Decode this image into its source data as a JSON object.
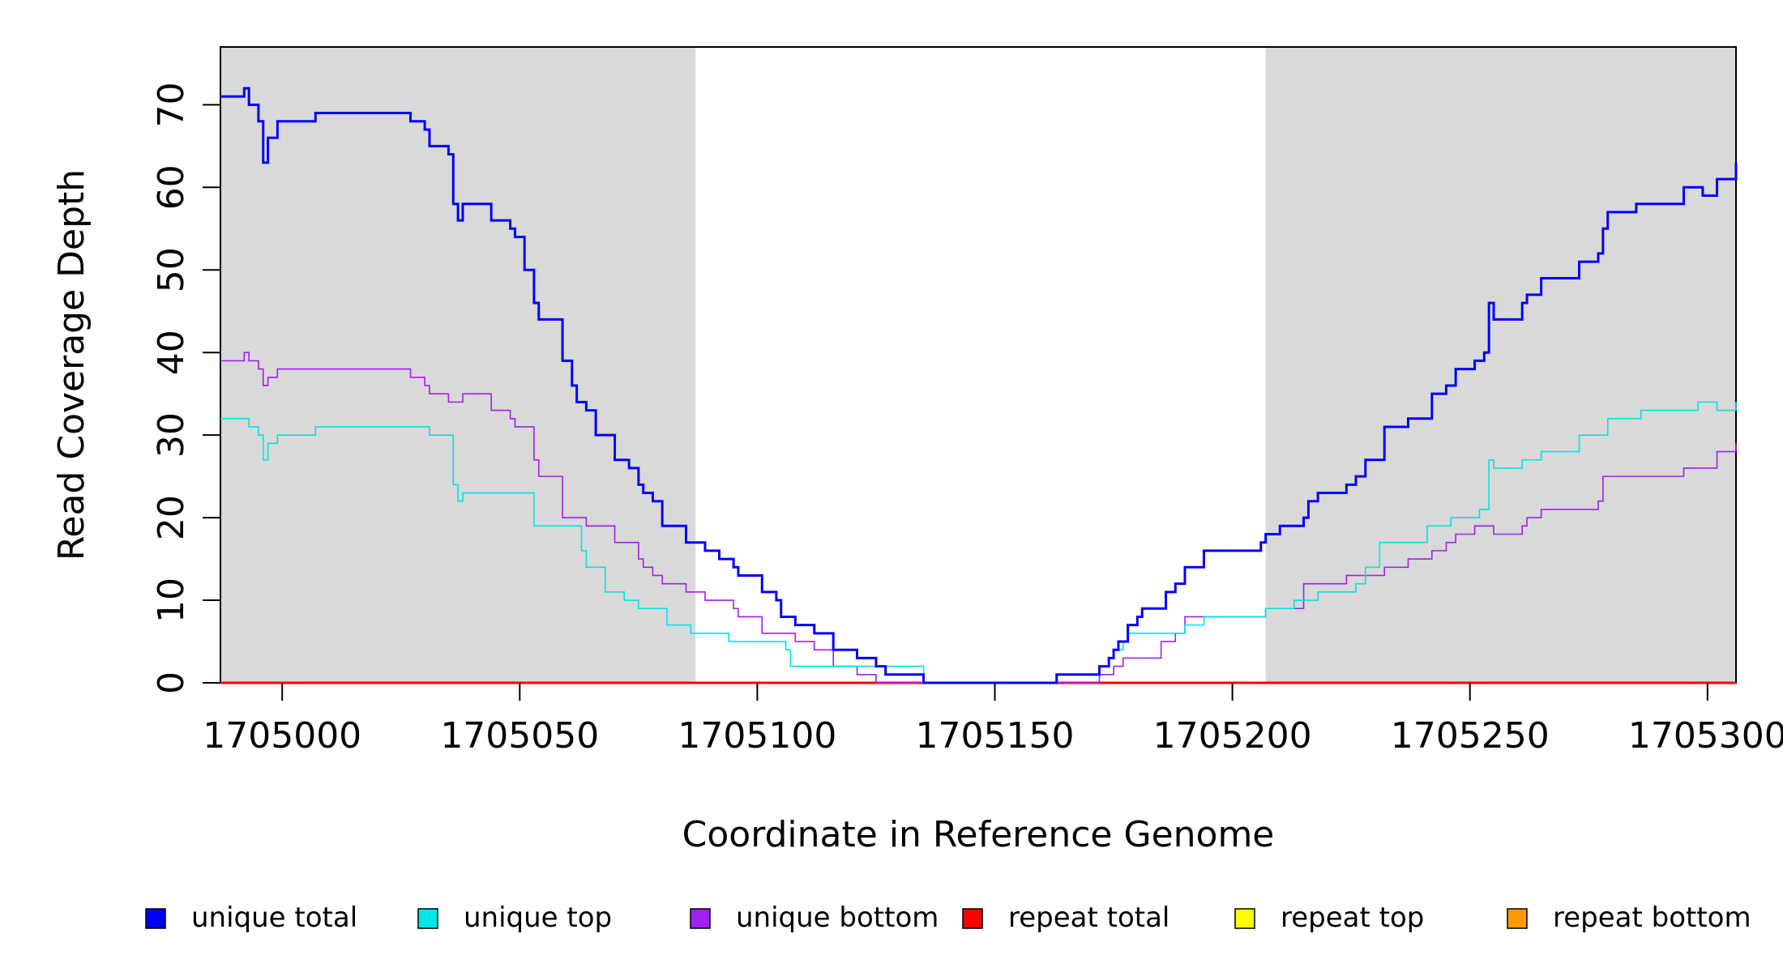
{
  "chart_data": {
    "type": "line",
    "xlabel": "Coordinate in Reference Genome",
    "ylabel": "Read Coverage Depth",
    "xlim": [
      1704987,
      1705306
    ],
    "ylim": [
      0,
      77
    ],
    "x_ticks": [
      1705000,
      1705050,
      1705100,
      1705150,
      1705200,
      1705250,
      1705300
    ],
    "x_tick_labels": [
      "1705000",
      "1705050",
      "1705100",
      "1705150",
      "1705200",
      "1705250",
      "1705300"
    ],
    "y_ticks": [
      0,
      10,
      20,
      30,
      40,
      50,
      60,
      70
    ],
    "y_tick_labels": [
      "0",
      "10",
      "20",
      "30",
      "40",
      "50",
      "60",
      "70"
    ],
    "shaded_regions": [
      [
        1704987,
        1705087
      ],
      [
        1705207,
        1705306
      ]
    ],
    "grid": false,
    "legend_position": "bottom",
    "series": [
      {
        "name": "unique total",
        "color": "#0000ff",
        "points": [
          [
            1704987,
            71
          ],
          [
            1704992,
            72
          ],
          [
            1704993,
            70
          ],
          [
            1704995,
            68
          ],
          [
            1704996,
            63
          ],
          [
            1704997,
            66
          ],
          [
            1704999,
            68
          ],
          [
            1705007,
            69
          ],
          [
            1705027,
            68
          ],
          [
            1705030,
            67
          ],
          [
            1705031,
            65
          ],
          [
            1705035,
            64
          ],
          [
            1705036,
            58
          ],
          [
            1705037,
            56
          ],
          [
            1705038,
            58
          ],
          [
            1705044,
            56
          ],
          [
            1705048,
            55
          ],
          [
            1705049,
            54
          ],
          [
            1705051,
            50
          ],
          [
            1705053,
            46
          ],
          [
            1705054,
            44
          ],
          [
            1705059,
            39
          ],
          [
            1705061,
            36
          ],
          [
            1705062,
            34
          ],
          [
            1705064,
            33
          ],
          [
            1705066,
            30
          ],
          [
            1705070,
            27
          ],
          [
            1705073,
            26
          ],
          [
            1705075,
            24
          ],
          [
            1705076,
            23
          ],
          [
            1705078,
            22
          ],
          [
            1705080,
            19
          ],
          [
            1705085,
            17
          ],
          [
            1705089,
            16
          ],
          [
            1705092,
            15
          ],
          [
            1705095,
            14
          ],
          [
            1705096,
            13
          ],
          [
            1705101,
            11
          ],
          [
            1705104,
            10
          ],
          [
            1705105,
            8
          ],
          [
            1705108,
            7
          ],
          [
            1705112,
            6
          ],
          [
            1705116,
            4
          ],
          [
            1705121,
            3
          ],
          [
            1705125,
            2
          ],
          [
            1705127,
            1
          ],
          [
            1705135,
            0
          ],
          [
            1705163,
            1
          ],
          [
            1705172,
            2
          ],
          [
            1705174,
            3
          ],
          [
            1705175,
            4
          ],
          [
            1705176,
            5
          ],
          [
            1705178,
            7
          ],
          [
            1705180,
            8
          ],
          [
            1705181,
            9
          ],
          [
            1705186,
            11
          ],
          [
            1705188,
            12
          ],
          [
            1705190,
            14
          ],
          [
            1705194,
            16
          ],
          [
            1705206,
            17
          ],
          [
            1705207,
            18
          ],
          [
            1705210,
            19
          ],
          [
            1705215,
            20
          ],
          [
            1705216,
            22
          ],
          [
            1705218,
            23
          ],
          [
            1705224,
            24
          ],
          [
            1705226,
            25
          ],
          [
            1705228,
            27
          ],
          [
            1705232,
            31
          ],
          [
            1705237,
            32
          ],
          [
            1705242,
            35
          ],
          [
            1705245,
            36
          ],
          [
            1705247,
            38
          ],
          [
            1705251,
            39
          ],
          [
            1705253,
            40
          ],
          [
            1705254,
            46
          ],
          [
            1705255,
            44
          ],
          [
            1705261,
            46
          ],
          [
            1705262,
            47
          ],
          [
            1705265,
            49
          ],
          [
            1705273,
            51
          ],
          [
            1705277,
            52
          ],
          [
            1705278,
            55
          ],
          [
            1705279,
            57
          ],
          [
            1705285,
            58
          ],
          [
            1705295,
            60
          ],
          [
            1705299,
            59
          ],
          [
            1705302,
            61
          ],
          [
            1705306,
            63
          ]
        ]
      },
      {
        "name": "unique top",
        "color": "#00e5e5",
        "points": [
          [
            1704987,
            32
          ],
          [
            1704993,
            31
          ],
          [
            1704995,
            30
          ],
          [
            1704996,
            27
          ],
          [
            1704997,
            29
          ],
          [
            1704999,
            30
          ],
          [
            1705007,
            31
          ],
          [
            1705031,
            30
          ],
          [
            1705036,
            24
          ],
          [
            1705037,
            22
          ],
          [
            1705038,
            23
          ],
          [
            1705053,
            19
          ],
          [
            1705063,
            16
          ],
          [
            1705064,
            14
          ],
          [
            1705068,
            11
          ],
          [
            1705072,
            10
          ],
          [
            1705075,
            9
          ],
          [
            1705081,
            7
          ],
          [
            1705086,
            6
          ],
          [
            1705094,
            5
          ],
          [
            1705106,
            4
          ],
          [
            1705107,
            2
          ],
          [
            1705135,
            0
          ],
          [
            1705163,
            1
          ],
          [
            1705172,
            2
          ],
          [
            1705174,
            3
          ],
          [
            1705175,
            4
          ],
          [
            1705177,
            5
          ],
          [
            1705178,
            6
          ],
          [
            1705182,
            6
          ],
          [
            1705190,
            7
          ],
          [
            1705194,
            8
          ],
          [
            1705207,
            9
          ],
          [
            1705213,
            10
          ],
          [
            1705218,
            11
          ],
          [
            1705226,
            12
          ],
          [
            1705228,
            14
          ],
          [
            1705231,
            17
          ],
          [
            1705241,
            19
          ],
          [
            1705246,
            20
          ],
          [
            1705252,
            21
          ],
          [
            1705254,
            27
          ],
          [
            1705255,
            26
          ],
          [
            1705261,
            27
          ],
          [
            1705265,
            28
          ],
          [
            1705273,
            30
          ],
          [
            1705279,
            32
          ],
          [
            1705286,
            33
          ],
          [
            1705298,
            34
          ],
          [
            1705302,
            33
          ],
          [
            1705306,
            34
          ]
        ]
      },
      {
        "name": "unique bottom",
        "color": "#a020f0",
        "points": [
          [
            1704987,
            39
          ],
          [
            1704992,
            40
          ],
          [
            1704993,
            39
          ],
          [
            1704995,
            38
          ],
          [
            1704996,
            36
          ],
          [
            1704997,
            37
          ],
          [
            1704999,
            38
          ],
          [
            1705027,
            37
          ],
          [
            1705030,
            36
          ],
          [
            1705031,
            35
          ],
          [
            1705035,
            34
          ],
          [
            1705038,
            35
          ],
          [
            1705044,
            33
          ],
          [
            1705048,
            32
          ],
          [
            1705049,
            31
          ],
          [
            1705053,
            27
          ],
          [
            1705054,
            25
          ],
          [
            1705059,
            20
          ],
          [
            1705064,
            19
          ],
          [
            1705070,
            17
          ],
          [
            1705075,
            15
          ],
          [
            1705076,
            14
          ],
          [
            1705078,
            13
          ],
          [
            1705080,
            12
          ],
          [
            1705085,
            11
          ],
          [
            1705089,
            10
          ],
          [
            1705095,
            9
          ],
          [
            1705096,
            8
          ],
          [
            1705101,
            6
          ],
          [
            1705108,
            5
          ],
          [
            1705112,
            4
          ],
          [
            1705116,
            2
          ],
          [
            1705121,
            1
          ],
          [
            1705125,
            0
          ],
          [
            1705172,
            1
          ],
          [
            1705175,
            2
          ],
          [
            1705177,
            3
          ],
          [
            1705185,
            5
          ],
          [
            1705188,
            6
          ],
          [
            1705190,
            8
          ],
          [
            1705207,
            9
          ],
          [
            1705215,
            12
          ],
          [
            1705224,
            13
          ],
          [
            1705232,
            14
          ],
          [
            1705237,
            15
          ],
          [
            1705242,
            16
          ],
          [
            1705245,
            17
          ],
          [
            1705247,
            18
          ],
          [
            1705251,
            19
          ],
          [
            1705255,
            18
          ],
          [
            1705261,
            19
          ],
          [
            1705262,
            20
          ],
          [
            1705265,
            21
          ],
          [
            1705277,
            22
          ],
          [
            1705278,
            25
          ],
          [
            1705295,
            26
          ],
          [
            1705302,
            28
          ],
          [
            1705306,
            29
          ]
        ]
      },
      {
        "name": "repeat total",
        "color": "#ff0000",
        "points": [
          [
            1704987,
            0
          ],
          [
            1705306,
            0
          ]
        ]
      },
      {
        "name": "repeat top",
        "color": "#ffff00",
        "points": [
          [
            1704987,
            0
          ],
          [
            1705306,
            0
          ]
        ]
      },
      {
        "name": "repeat bottom",
        "color": "#ff9900",
        "points": [
          [
            1704987,
            0
          ],
          [
            1705306,
            0
          ]
        ]
      }
    ]
  }
}
